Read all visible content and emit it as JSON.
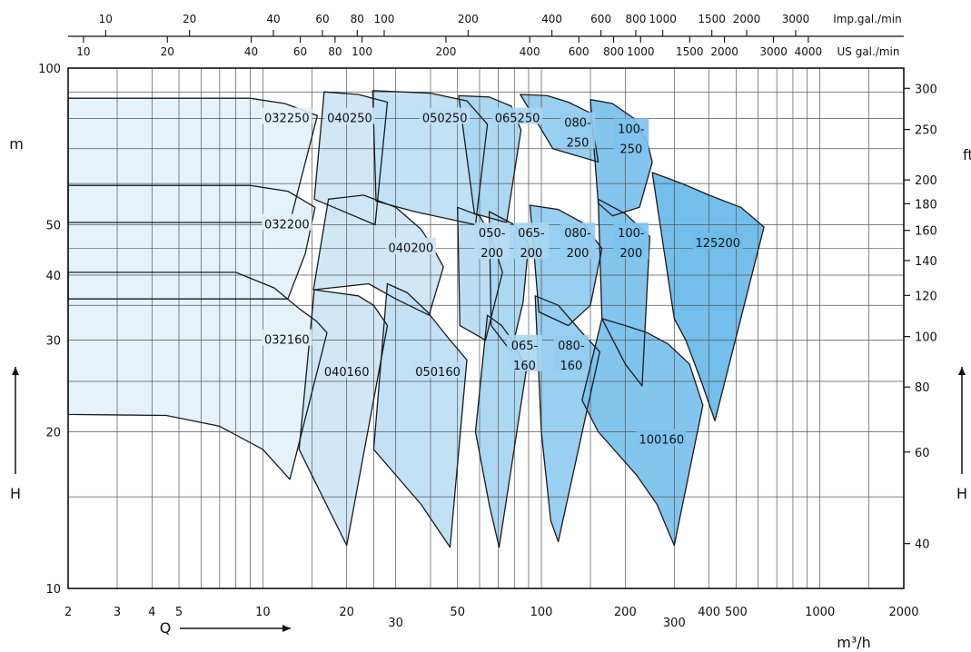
{
  "chart_data": {
    "type": "area",
    "x_scale": "log",
    "y_scale": "log",
    "xlim": [
      2,
      2000
    ],
    "ylim": [
      10,
      100
    ],
    "grid": true,
    "x_unit": "m³/h",
    "x_axis_symbol": "Q",
    "y_unit_left": "m",
    "y_unit_right": "ft",
    "y_axis_symbol": "H",
    "x_ticks": [
      2,
      3,
      4,
      5,
      10,
      20,
      30,
      50,
      100,
      200,
      300,
      400,
      500,
      1000,
      2000
    ],
    "x_minor_ticks": [
      6,
      7,
      8,
      9,
      15,
      25,
      40,
      60,
      70,
      80,
      90,
      150,
      600,
      700,
      800,
      900,
      1500
    ],
    "y_ticks": [
      10,
      20,
      30,
      40,
      50,
      100
    ],
    "y_minor_ticks": [
      15,
      25,
      35,
      45,
      60,
      70,
      80,
      90
    ],
    "right_ticks_ft": [
      40,
      60,
      80,
      100,
      120,
      140,
      160,
      180,
      200,
      250,
      300
    ],
    "us_scale": {
      "label": "US gal./min",
      "ticks": [
        10,
        20,
        40,
        60,
        80,
        100,
        200,
        400,
        600,
        800,
        1000,
        1500,
        2000,
        3000,
        4000
      ]
    },
    "imp_scale": {
      "label": "Imp.gal./min",
      "ticks": [
        10,
        20,
        40,
        60,
        80,
        100,
        200,
        400,
        600,
        800,
        1000,
        1500,
        2000,
        3000
      ]
    },
    "series": [
      {
        "name": "032250",
        "label_lines": [
          "032250"
        ],
        "label_at": [
          12.2,
          80
        ],
        "fill": "#e4f1fa",
        "poly": [
          [
            2,
            87.5
          ],
          [
            9,
            87.5
          ],
          [
            12,
            85.5
          ],
          [
            15.7,
            81
          ],
          [
            12.5,
            50.5
          ],
          [
            2,
            50.5
          ]
        ]
      },
      {
        "name": "032200",
        "label_lines": [
          "032200"
        ],
        "label_at": [
          12.2,
          50
        ],
        "fill": "#e4f1fa",
        "poly": [
          [
            2,
            59.5
          ],
          [
            9,
            59.5
          ],
          [
            12.3,
            58
          ],
          [
            15.4,
            54
          ],
          [
            14.2,
            44
          ],
          [
            12.3,
            36
          ],
          [
            2,
            36
          ]
        ]
      },
      {
        "name": "032160",
        "label_lines": [
          "032160"
        ],
        "label_at": [
          12.2,
          30
        ],
        "fill": "#e4f1fa",
        "poly": [
          [
            2,
            40.5
          ],
          [
            8,
            40.5
          ],
          [
            11,
            37.8
          ],
          [
            13.5,
            34.5
          ],
          [
            15.6,
            32.6
          ],
          [
            17,
            31
          ],
          [
            12.5,
            16.2
          ],
          [
            10,
            18.5
          ],
          [
            7,
            20.5
          ],
          [
            4.5,
            21.5
          ],
          [
            2,
            21.6
          ]
        ]
      },
      {
        "name": "040250",
        "label_lines": [
          "040250"
        ],
        "label_at": [
          20.5,
          80
        ],
        "fill": "#cfe6f6",
        "poly": [
          [
            16.6,
            90
          ],
          [
            22,
            89
          ],
          [
            28,
            86
          ],
          [
            25.3,
            50
          ],
          [
            15.3,
            56
          ]
        ]
      },
      {
        "name": "040200",
        "label_lines": [
          "040200"
        ],
        "label_at": [
          34,
          45
        ],
        "fill": "#cfe6f6",
        "poly": [
          [
            17.2,
            56
          ],
          [
            23,
            57
          ],
          [
            30,
            54
          ],
          [
            37,
            49
          ],
          [
            40.5,
            45.5
          ],
          [
            44.5,
            41.5
          ],
          [
            39.5,
            33.5
          ],
          [
            30,
            36
          ],
          [
            24,
            38.5
          ],
          [
            15.2,
            37.5
          ]
        ]
      },
      {
        "name": "040160",
        "label_lines": [
          "040160"
        ],
        "label_at": [
          20,
          26
        ],
        "fill": "#cfe6f6",
        "poly": [
          [
            15.3,
            37.5
          ],
          [
            22,
            36.5
          ],
          [
            25,
            35
          ],
          [
            28,
            32
          ],
          [
            20,
            12.1
          ],
          [
            15,
            16.5
          ],
          [
            13.5,
            18.5
          ]
        ]
      },
      {
        "name": "050250",
        "label_lines": [
          "050250"
        ],
        "label_at": [
          45,
          80
        ],
        "fill": "#bfdff4",
        "poly": [
          [
            24.8,
            90.5
          ],
          [
            40,
            89.5
          ],
          [
            54,
            86.5
          ],
          [
            64,
            78
          ],
          [
            58,
            50
          ],
          [
            35,
            53
          ],
          [
            25.5,
            55.5
          ]
        ]
      },
      {
        "name": "050160",
        "label_lines": [
          "050160"
        ],
        "label_at": [
          42.5,
          26
        ],
        "fill": "#bfdff4",
        "poly": [
          [
            28,
            38.5
          ],
          [
            33,
            37
          ],
          [
            39,
            34
          ],
          [
            47,
            30
          ],
          [
            54,
            27.5
          ],
          [
            47,
            12
          ],
          [
            37,
            14.5
          ],
          [
            25,
            18.5
          ]
        ]
      },
      {
        "name": "065250",
        "label_lines": [
          "065250"
        ],
        "label_at": [
          82,
          80
        ],
        "fill": "#a9d6f2",
        "poly": [
          [
            50.5,
            88.5
          ],
          [
            65,
            88
          ],
          [
            78,
            84.5
          ],
          [
            84.5,
            76
          ],
          [
            75,
            50.5
          ],
          [
            57.5,
            52.5
          ]
        ]
      },
      {
        "name": "050-200",
        "label_lines": [
          "050-",
          "200"
        ],
        "label_at": [
          66.5,
          46
        ],
        "fill": "#b7dcf4",
        "poly": [
          [
            50,
            54
          ],
          [
            60,
            52
          ],
          [
            66,
            47.5
          ],
          [
            72.5,
            40.5
          ],
          [
            63,
            30
          ],
          [
            51,
            32
          ]
        ]
      },
      {
        "name": "065-200",
        "label_lines": [
          "065-",
          "200"
        ],
        "label_at": [
          92,
          46
        ],
        "fill": "#a9d6f2",
        "poly": [
          [
            65,
            53
          ],
          [
            80,
            50
          ],
          [
            90,
            46
          ],
          [
            86,
            35.5
          ],
          [
            78,
            28.5
          ],
          [
            66,
            32
          ]
        ]
      },
      {
        "name": "065-160",
        "label_lines": [
          "065-",
          "160"
        ],
        "label_at": [
          87,
          28
        ],
        "fill": "#a9d6f2",
        "poly": [
          [
            64,
            33.5
          ],
          [
            72,
            32
          ],
          [
            78.5,
            30
          ],
          [
            88.5,
            26.5
          ],
          [
            70.5,
            12
          ],
          [
            65,
            14.5
          ],
          [
            58,
            20
          ]
        ]
      },
      {
        "name": "080-250",
        "label_lines": [
          "080-",
          "250"
        ],
        "label_at": [
          135,
          75
        ],
        "fill": "#94ccef",
        "poly": [
          [
            84,
            89
          ],
          [
            105,
            88.5
          ],
          [
            125,
            86
          ],
          [
            150,
            82
          ],
          [
            160,
            66
          ],
          [
            110,
            70
          ]
        ]
      },
      {
        "name": "080-200",
        "label_lines": [
          "080-",
          "200"
        ],
        "label_at": [
          135,
          46
        ],
        "fill": "#94ccef",
        "poly": [
          [
            91,
            54.5
          ],
          [
            115,
            53.5
          ],
          [
            140,
            50.5
          ],
          [
            165,
            45
          ],
          [
            150,
            35
          ],
          [
            125,
            32
          ],
          [
            98,
            34
          ]
        ]
      },
      {
        "name": "080-160",
        "label_lines": [
          "080-",
          "160"
        ],
        "label_at": [
          128,
          28
        ],
        "fill": "#94ccef",
        "poly": [
          [
            95,
            36.5
          ],
          [
            115,
            35
          ],
          [
            140,
            31
          ],
          [
            162,
            28.5
          ],
          [
            115,
            12.3
          ],
          [
            108,
            13.5
          ],
          [
            100,
            20
          ]
        ]
      },
      {
        "name": "100-250",
        "label_lines": [
          "100-",
          "250"
        ],
        "label_at": [
          210,
          73
        ],
        "fill": "#7dc2ed",
        "poly": [
          [
            150,
            87
          ],
          [
            180,
            85.5
          ],
          [
            215,
            80
          ],
          [
            240,
            72
          ],
          [
            250,
            66
          ],
          [
            225,
            54
          ],
          [
            180,
            52
          ],
          [
            160,
            55
          ]
        ]
      },
      {
        "name": "100-200",
        "label_lines": [
          "100-",
          "200"
        ],
        "label_at": [
          210,
          46
        ],
        "fill": "#7dc2ed",
        "poly": [
          [
            160,
            56
          ],
          [
            200,
            52.5
          ],
          [
            225,
            49.5
          ],
          [
            245,
            47.5
          ],
          [
            230,
            24.5
          ],
          [
            200,
            27
          ],
          [
            165,
            33
          ]
        ]
      },
      {
        "name": "125200",
        "label_lines": [
          "125200"
        ],
        "label_at": [
          430,
          46
        ],
        "fill": "#6bbbea",
        "poly": [
          [
            250,
            63
          ],
          [
            320,
            60
          ],
          [
            400,
            57
          ],
          [
            520,
            54
          ],
          [
            630,
            49.5
          ],
          [
            420,
            21
          ],
          [
            375,
            25
          ],
          [
            330,
            30
          ],
          [
            300,
            33
          ]
        ]
      },
      {
        "name": "100160",
        "label_lines": [
          "100160"
        ],
        "label_at": [
          270,
          19.3
        ],
        "fill": "#7dc2ed",
        "poly": [
          [
            165,
            33
          ],
          [
            200,
            32
          ],
          [
            240,
            31
          ],
          [
            285,
            29.5
          ],
          [
            340,
            27
          ],
          [
            380,
            22.5
          ],
          [
            300,
            12.1
          ],
          [
            260,
            14.5
          ],
          [
            220,
            16.5
          ],
          [
            160,
            20
          ],
          [
            140,
            23
          ]
        ]
      }
    ]
  }
}
